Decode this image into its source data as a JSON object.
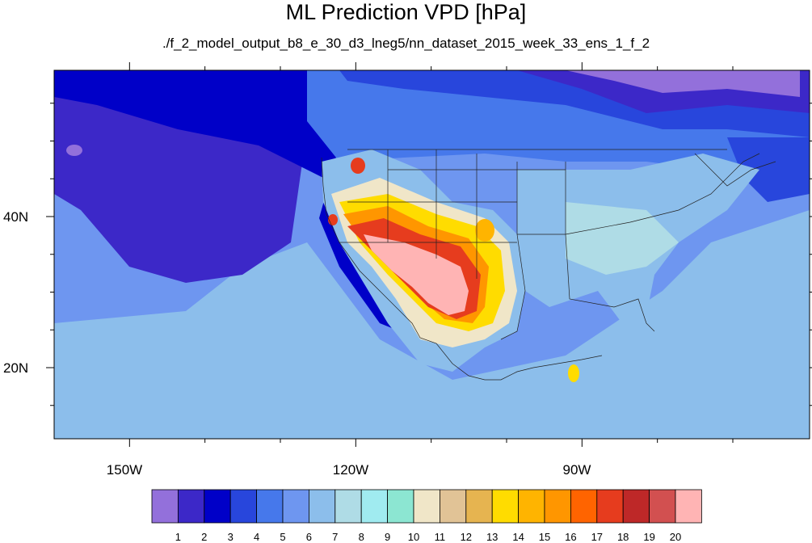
{
  "chart_data": {
    "type": "heatmap",
    "title": "ML Prediction VPD [hPa]",
    "subtitle": "./f_2_model_output_b8_e_30_d3_lneg5/nn_dataset_2015_week_33_ens_1_f_2",
    "x_ticks": [
      {
        "value": -150,
        "label": "150W"
      },
      {
        "value": -120,
        "label": "120W"
      },
      {
        "value": -90,
        "label": "90W"
      }
    ],
    "y_ticks": [
      {
        "value": 40,
        "label": "40N"
      },
      {
        "value": 20,
        "label": "20N"
      }
    ],
    "colorbar": {
      "levels": [
        "1",
        "2",
        "3",
        "4",
        "5",
        "6",
        "7",
        "8",
        "9",
        "10",
        "11",
        "12",
        "13",
        "14",
        "15",
        "16",
        "17",
        "18",
        "19",
        "20"
      ],
      "colors": [
        "#9370db",
        "#3c28c8",
        "#0000c8",
        "#2846dc",
        "#4678eb",
        "#6e96f0",
        "#8cbeeb",
        "#afdce6",
        "#a0ebf0",
        "#8ce6d2",
        "#f0e6c8",
        "#e1c396",
        "#e6b450",
        "#ffdc00",
        "#ffb400",
        "#ff9600",
        "#ff6400",
        "#e63c1e",
        "#be2828",
        "#d25050",
        "#ffb4b4"
      ]
    }
  }
}
